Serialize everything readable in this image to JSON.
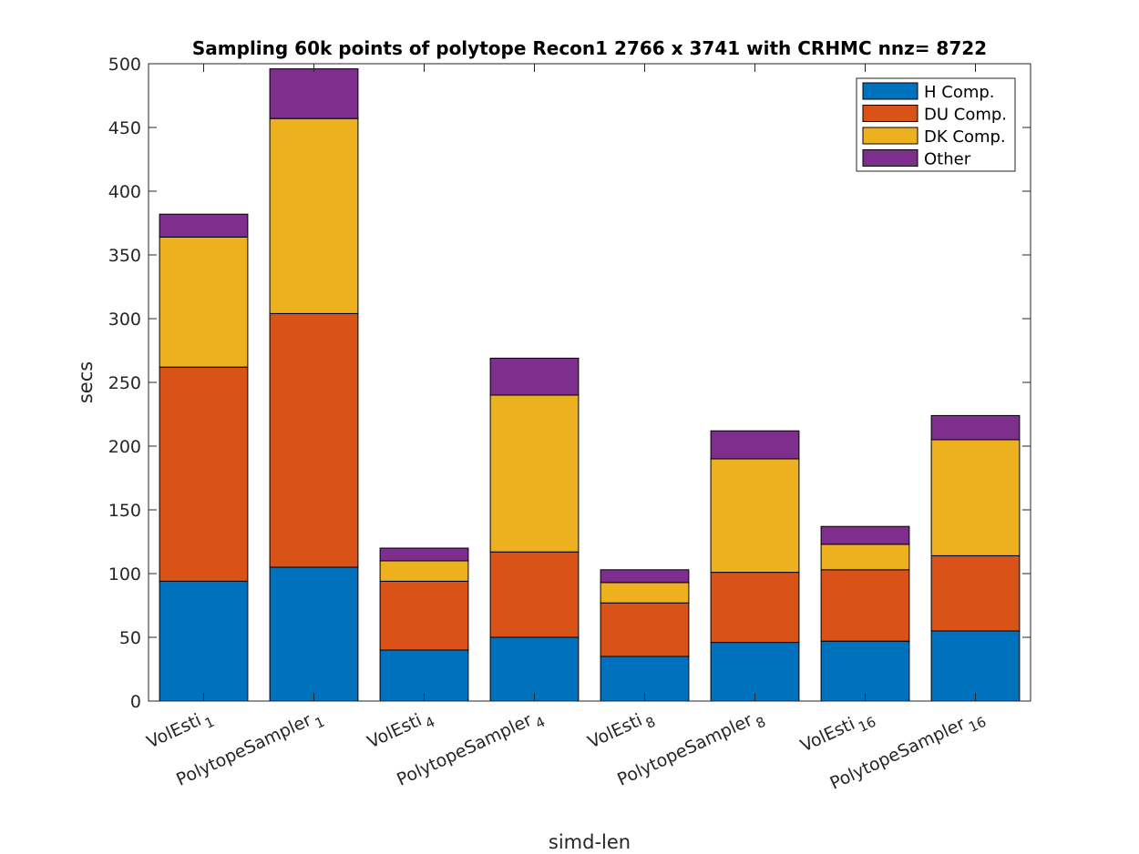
{
  "chart_data": {
    "type": "bar",
    "stacked": true,
    "title": "Sampling 60k points of polytope Recon1 2766 x 3741 with CRHMC nnz= 8722",
    "xlabel": "simd-len",
    "ylabel": "secs",
    "ylim": [
      0,
      500
    ],
    "yticks": [
      0,
      50,
      100,
      150,
      200,
      250,
      300,
      350,
      400,
      450,
      500
    ],
    "grid": false,
    "legend_position": "top-right",
    "categories": [
      {
        "base": "VolEsti",
        "sub": "1"
      },
      {
        "base": "PolytopeSampler",
        "sub": "1"
      },
      {
        "base": "VolEsti",
        "sub": "4"
      },
      {
        "base": "PolytopeSampler",
        "sub": "4"
      },
      {
        "base": "VolEsti",
        "sub": "8"
      },
      {
        "base": "PolytopeSampler",
        "sub": "8"
      },
      {
        "base": "VolEsti",
        "sub": "16"
      },
      {
        "base": "PolytopeSampler",
        "sub": "16"
      }
    ],
    "series": [
      {
        "name": "H Comp.",
        "color": "#0072BD",
        "values": [
          94,
          105,
          40,
          50,
          35,
          46,
          47,
          55
        ]
      },
      {
        "name": "DU Comp.",
        "color": "#D95319",
        "values": [
          168,
          199,
          54,
          67,
          42,
          55,
          56,
          59
        ]
      },
      {
        "name": "DK Comp.",
        "color": "#EDB120",
        "values": [
          102,
          153,
          16,
          123,
          16,
          89,
          20,
          91
        ]
      },
      {
        "name": "Other",
        "color": "#7E2F8E",
        "values": [
          18,
          39,
          10,
          29,
          10,
          22,
          14,
          19
        ]
      }
    ]
  }
}
